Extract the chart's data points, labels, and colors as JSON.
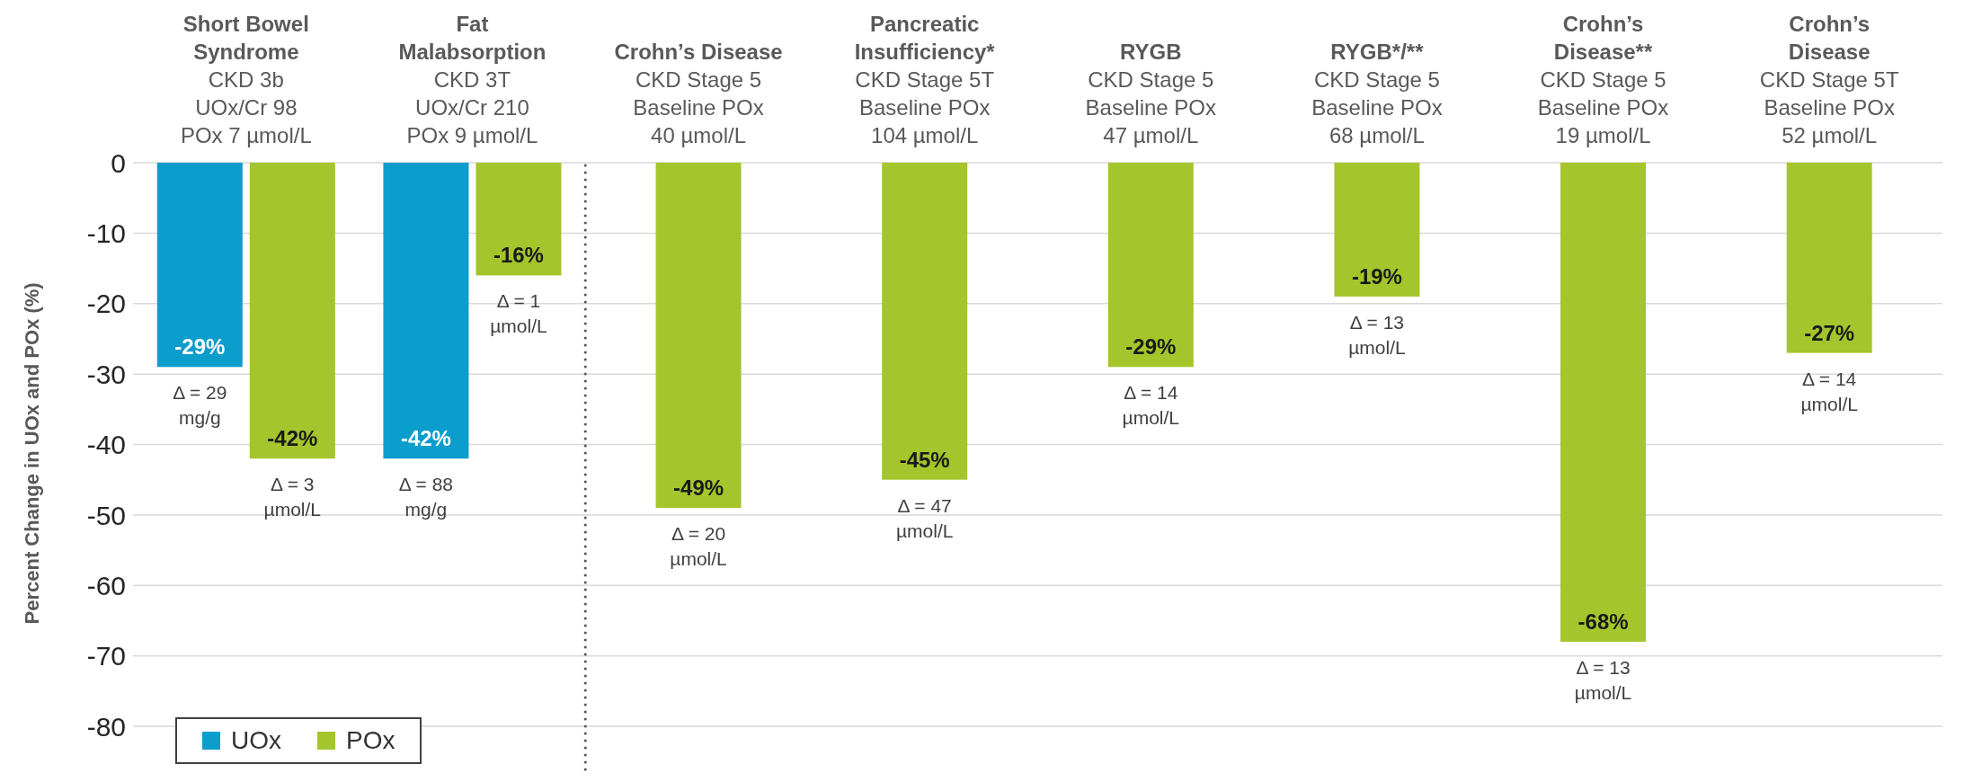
{
  "chart_data": {
    "type": "bar",
    "ylabel": "Percent Change in UOx and POx (%)",
    "categories": [
      "Short Bowel\nSyndrome\nCKD 3b\nUOx/Cr 98\nPOx 7 µmol/L",
      "Fat\nMalabsorption\nCKD 3T\nUOx/Cr 210\nPOx 9 µmol/L",
      "Crohn’s Disease\nCKD Stage 5\nBaseline POx\n40 µmol/L",
      "Pancreatic\nInsufficiency*\nCKD Stage 5T\nBaseline POx\n104 µmol/L",
      "RYGB\nCKD Stage 5\nBaseline POx\n47 µmol/L",
      "RYGB*/**\nCKD Stage 5\nBaseline POx\n68 µmol/L",
      "Crohn’s\nDisease**\nCKD Stage 5\nBaseline POx\n19 µmol/L",
      "Crohn’s\nDisease\nCKD Stage 5T\nBaseline POx\n52 µmol/L"
    ],
    "series": [
      {
        "name": "UOx",
        "color": "#0b9dcc",
        "values": [
          -29,
          -42,
          null,
          null,
          null,
          null,
          null,
          null
        ],
        "value_labels": [
          "-29%",
          "-42%",
          null,
          null,
          null,
          null,
          null,
          null
        ]
      },
      {
        "name": "POx",
        "color": "#a4c52b",
        "values": [
          -42,
          -16,
          -49,
          -45,
          -29,
          -19,
          -68,
          -27
        ],
        "value_labels": [
          "-42%",
          "-16%",
          "-49%",
          "-45%",
          "-29%",
          "-19%",
          "-68%",
          "-27%"
        ]
      }
    ],
    "ylim": [
      -80,
      0
    ],
    "yticks": [
      -80,
      -70,
      -60,
      -50,
      -40,
      -30,
      -20,
      -10,
      0
    ],
    "grid": "y",
    "legend": "bottom left",
    "annotations": [
      {
        "text": "Δ = 29\nmg/g",
        "x": "Short Bowel\nSyndrome\nCKD 3b\nUOx/Cr 98\nPOx 7 µmol/L",
        "y": -29
      },
      {
        "text": "Δ = 3\nµmol/L",
        "x": "Short Bowel\nSyndrome\nCKD 3b\nUOx/Cr 98\nPOx 7 µmol/L",
        "y": -42
      },
      {
        "text": "Δ = 88\nmg/g",
        "x": "Fat\nMalabsorption\nCKD 3T\nUOx/Cr 210\nPOx 9 µmol/L",
        "y": -42
      },
      {
        "text": "Δ = 1\nµmol/L",
        "x": "Fat\nMalabsorption\nCKD 3T\nUOx/Cr 210\nPOx 9 µmol/L",
        "y": -16
      },
      {
        "text": "Δ = 20\nµmol/L",
        "x": "Crohn’s Disease\nCKD Stage 5\nBaseline POx\n40 µmol/L",
        "y": -49
      },
      {
        "text": "Δ = 47\nµmol/L",
        "x": "Pancreatic\nInsufficiency*\nCKD Stage 5T\nBaseline POx\n104 µmol/L",
        "y": -45
      },
      {
        "text": "Δ = 14\nµmol/L",
        "x": "RYGB\nCKD Stage 5\nBaseline POx\n47 µmol/L",
        "y": -29
      },
      {
        "text": "Δ = 13\nµmol/L",
        "x": "RYGB*/**\nCKD Stage 5\nBaseline POx\n68 µmol/L",
        "y": -19
      },
      {
        "text": "Δ = 13\nµmol/L",
        "x": "Crohn’s\nDisease**\nCKD Stage 5\nBaseline POx\n19 µmol/L",
        "y": -68
      },
      {
        "text": "Δ = 14\nµmol/L",
        "x": "Crohn’s\nDisease\nCKD Stage 5T\nBaseline POx\n52 µmol/L",
        "y": -27
      }
    ]
  }
}
